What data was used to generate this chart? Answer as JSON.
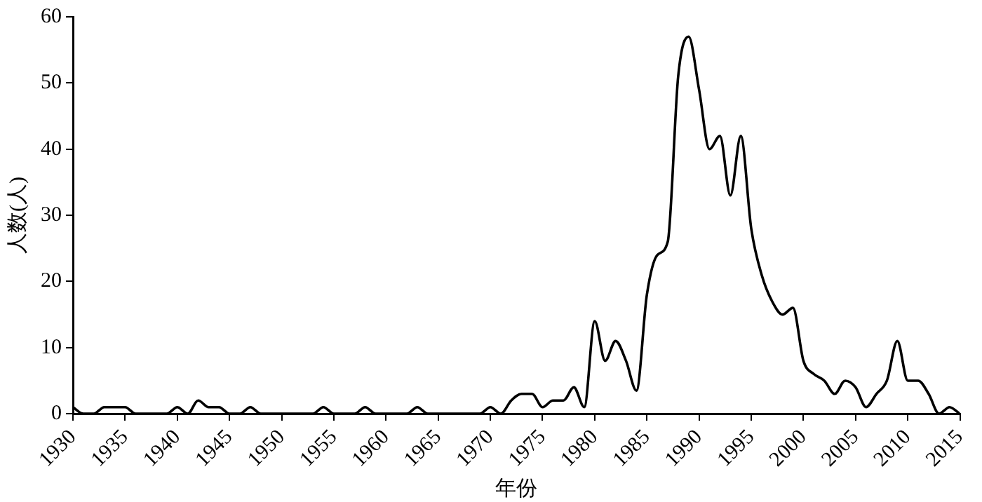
{
  "chart_data": {
    "type": "line",
    "xlabel": "年份",
    "ylabel": "人数(人)",
    "x": [
      1930,
      1931,
      1932,
      1933,
      1934,
      1935,
      1936,
      1937,
      1938,
      1939,
      1940,
      1941,
      1942,
      1943,
      1944,
      1945,
      1946,
      1947,
      1948,
      1949,
      1950,
      1951,
      1952,
      1953,
      1954,
      1955,
      1956,
      1957,
      1958,
      1959,
      1960,
      1961,
      1962,
      1963,
      1964,
      1965,
      1966,
      1967,
      1968,
      1969,
      1970,
      1971,
      1972,
      1973,
      1974,
      1975,
      1976,
      1977,
      1978,
      1979,
      1980,
      1981,
      1982,
      1983,
      1984,
      1985,
      1986,
      1987,
      1988,
      1989,
      1990,
      1991,
      1992,
      1993,
      1994,
      1995,
      1996,
      1997,
      1998,
      1999,
      2000,
      2001,
      2002,
      2003,
      2004,
      2005,
      2006,
      2007,
      2008,
      2009,
      2010,
      2011,
      2012,
      2013,
      2014,
      2015
    ],
    "series": [
      {
        "color": "#000000",
        "values": [
          1,
          0,
          0,
          1,
          1,
          1,
          0,
          0,
          0,
          0,
          1,
          0,
          2,
          1,
          1,
          0,
          0,
          1,
          0,
          0,
          0,
          0,
          0,
          0,
          1,
          0,
          0,
          0,
          1,
          0,
          0,
          0,
          0,
          1,
          0,
          0,
          0,
          0,
          0,
          0,
          1,
          0,
          2,
          3,
          3,
          1,
          2,
          2,
          4,
          1,
          14,
          8,
          11,
          8,
          3.5,
          18,
          24,
          26,
          51,
          57,
          49,
          40,
          42,
          33,
          42,
          28,
          21,
          17,
          15,
          16,
          8,
          6,
          5,
          3,
          5,
          4,
          1,
          3,
          5,
          11,
          5,
          5,
          3,
          0,
          1,
          0
        ]
      }
    ],
    "xlim": [
      1930,
      2015
    ],
    "xticks": [
      1930,
      1935,
      1940,
      1945,
      1950,
      1955,
      1960,
      1965,
      1970,
      1975,
      1980,
      1985,
      1990,
      1995,
      2000,
      2005,
      2010,
      2015
    ],
    "ylim": [
      0,
      60
    ],
    "yticks": [
      0,
      10,
      20,
      30,
      40,
      50,
      60
    ],
    "grid": false,
    "marker": "none",
    "line_style": "solid"
  }
}
